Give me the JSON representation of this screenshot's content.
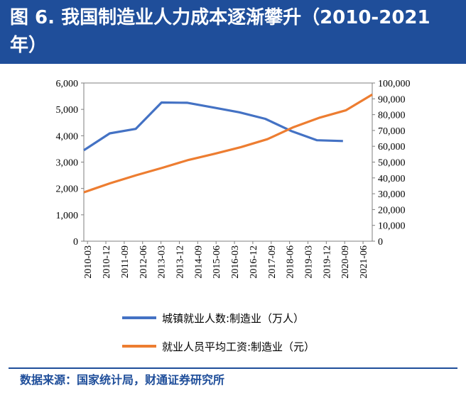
{
  "header": {
    "title": "图 6.  我国制造业人力成本逐渐攀升（2010-2021 年）"
  },
  "source": "数据来源：国家统计局，财通证券研究所",
  "colors": {
    "header_bg": "#1f4e9a",
    "employment": "#4472c4",
    "wage": "#ed7d31"
  },
  "chart_data": {
    "type": "line",
    "categories": [
      "2010-03",
      "2010-12",
      "2011-09",
      "2012-06",
      "2013-03",
      "2013-12",
      "2014-09",
      "2015-06",
      "2016-03",
      "2016-12",
      "2017-09",
      "2018-06",
      "2019-03",
      "2019-12",
      "2020-09",
      "2021-06"
    ],
    "y_ticks_left": [
      "0",
      "1,000",
      "2,000",
      "3,000",
      "4,000",
      "5,000",
      "6,000"
    ],
    "y_ticks_right": [
      "0",
      "10,000",
      "20,000",
      "30,000",
      "40,000",
      "50,000",
      "60,000",
      "70,000",
      "80,000",
      "90,000",
      "100,000"
    ],
    "ylim_left": [
      0,
      6000
    ],
    "ylim_right": [
      0,
      100000
    ],
    "grid": false,
    "legend_position": "bottom",
    "series": [
      {
        "name": "城镇就业人数:制造业（万人）",
        "axis": "left",
        "color": "#4472c4",
        "x": [
          2010,
          2011,
          2012,
          2013,
          2014,
          2015,
          2016,
          2017,
          2018,
          2019,
          2020
        ],
        "values": [
          3450,
          4090,
          4260,
          5260,
          5250,
          5070,
          4890,
          4640,
          4180,
          3830,
          3800
        ]
      },
      {
        "name": "就业人员平均工资:制造业（元）",
        "axis": "right",
        "color": "#ed7d31",
        "x": [
          2010,
          2011,
          2012,
          2013,
          2014,
          2015,
          2016,
          2017,
          2018,
          2019,
          2020,
          2021
        ],
        "values": [
          30900,
          36600,
          41700,
          46400,
          51400,
          55300,
          59500,
          64500,
          72100,
          78100,
          82800,
          92700
        ]
      }
    ]
  }
}
